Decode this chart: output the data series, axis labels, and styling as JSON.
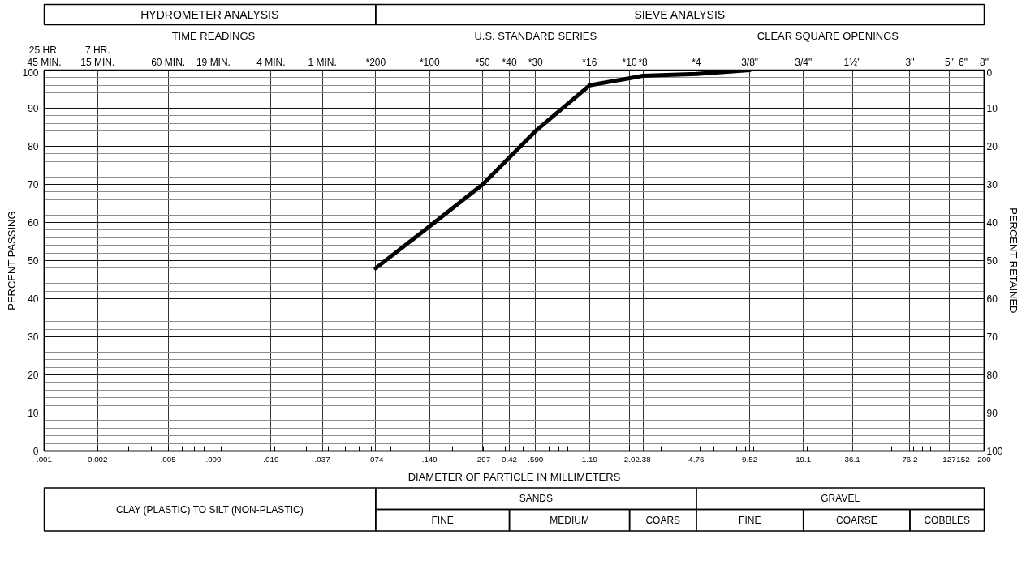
{
  "chart_data": {
    "type": "line",
    "xlabel": "DIAMETER OF PARTICLE IN MILLIMETERS",
    "ylabel": "PERCENT PASSING",
    "y2label": "PERCENT RETAINED",
    "annotations": [
      "HYDROMETER ANALYSIS",
      "SIEVE ANALYSIS",
      "TIME READINGS",
      "U.S. STANDARD SERIES",
      "CLEAR SQUARE OPENINGS",
      "25 HR.",
      "7 HR.",
      "45 MIN.",
      "15 MIN.",
      "60 MIN.",
      "19 MIN.",
      "4 MIN.",
      "1 MIN.",
      "*200",
      "*100",
      "*50",
      "*40",
      "*30",
      "*16",
      "*10",
      "*8",
      "*4",
      "3/8\"",
      "3/4\"",
      "1½\"",
      "3\"",
      "5\"",
      "6\"",
      "8\"",
      "CLAY (PLASTIC) TO SILT (NON-PLASTIC)",
      "SANDS",
      "GRAVEL",
      "FINE",
      "MEDIUM",
      "COARS",
      "FINE",
      "COARSE",
      "COBBLES"
    ],
    "x": [
      0.074,
      0.149,
      0.297,
      0.59,
      1.19,
      2.38,
      4.76,
      9.52
    ],
    "series": [
      {
        "color": "#000000",
        "values": [
          48,
          59,
          70,
          84,
          96,
          98.5,
          99,
          100
        ]
      }
    ],
    "log": "x",
    "xlim": [
      0.001,
      200
    ],
    "xticks": [
      {
        "value": 0.001,
        "label": ".001"
      },
      0.002,
      {
        "value": 0.005,
        "label": ".005"
      },
      {
        "value": 0.009,
        "label": ".009"
      },
      {
        "value": 0.019,
        "label": ".019"
      },
      {
        "value": 0.037,
        "label": ".037"
      },
      {
        "value": 0.074,
        "label": ".074"
      },
      {
        "value": 0.149,
        "label": ".149"
      },
      {
        "value": 0.297,
        "label": ".297"
      },
      0.42,
      {
        "value": 0.59,
        "label": ".590"
      },
      1.19,
      {
        "value": 2.0,
        "label": "2.0"
      },
      2.38,
      4.76,
      9.52,
      19.1,
      36.1,
      76.2,
      127,
      152,
      200
    ],
    "ylim": [
      0,
      100
    ],
    "yticks": [
      0,
      10,
      20,
      30,
      40,
      50,
      60,
      70,
      80,
      90,
      100
    ],
    "y2lim": [
      100,
      0
    ],
    "y2ticks": [
      0,
      10,
      20,
      30,
      40,
      50,
      60,
      70,
      80,
      90,
      100
    ],
    "grid": true,
    "line_style": "solid"
  }
}
